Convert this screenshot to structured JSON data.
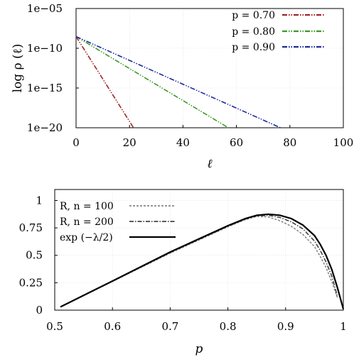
{
  "chart_data": [
    {
      "type": "line",
      "title": "",
      "xlabel": "ℓ",
      "ylabel": "log ρ (ℓ)",
      "y_scale": "log",
      "xlim": [
        0,
        100
      ],
      "ylim": [
        1e-20,
        1e-05
      ],
      "x_ticks": [
        "0",
        "20",
        "40",
        "60",
        "80",
        "100"
      ],
      "y_ticks": [
        "1e−05",
        "1e−10",
        "1e−15",
        "1e−20"
      ],
      "y_tick_values": [
        1e-05,
        1e-10,
        1e-15,
        1e-20
      ],
      "grid": true,
      "legend": "top-right",
      "series": [
        {
          "name": "p = 0.70",
          "color": "#a0262a",
          "dash": "dash-dot-dot",
          "x": [
            0,
            21.5
          ],
          "y": [
            3e-09,
            1e-20
          ]
        },
        {
          "name": "p = 0.80",
          "color": "#3c9a28",
          "dash": "dash-dot-dot",
          "x": [
            0,
            57.0
          ],
          "y": [
            3e-09,
            1e-20
          ]
        },
        {
          "name": "p = 0.90",
          "color": "#1e2a9c",
          "dash": "dash-dot-dot",
          "x": [
            0,
            76.5
          ],
          "y": [
            3e-09,
            1e-20
          ]
        }
      ]
    },
    {
      "type": "line",
      "title": "",
      "xlabel": "p",
      "ylabel": "",
      "xlim": [
        0.5,
        1.0
      ],
      "ylim": [
        0,
        1.1
      ],
      "x_ticks": [
        "0.5",
        "0.6",
        "0.7",
        "0.8",
        "0.9",
        "1"
      ],
      "y_ticks": [
        "0",
        "0.25",
        "0.5",
        "0.75",
        "1"
      ],
      "grid": true,
      "legend": "top-left",
      "series": [
        {
          "name": "R, n = 100",
          "color": "#888888",
          "dash": "dotted",
          "x": [
            0.51,
            0.6,
            0.7,
            0.75,
            0.8,
            0.83,
            0.85,
            0.87,
            0.89,
            0.91,
            0.93,
            0.95,
            0.96,
            0.97,
            0.98,
            0.99
          ],
          "y": [
            0.03,
            0.262,
            0.52,
            0.64,
            0.76,
            0.825,
            0.855,
            0.85,
            0.815,
            0.765,
            0.69,
            0.58,
            0.49,
            0.39,
            0.26,
            0.11
          ]
        },
        {
          "name": "R, n = 200",
          "color": "#444444",
          "dash": "dash-dot",
          "x": [
            0.51,
            0.6,
            0.7,
            0.75,
            0.8,
            0.83,
            0.85,
            0.87,
            0.89,
            0.91,
            0.93,
            0.95,
            0.96,
            0.97,
            0.98,
            0.99
          ],
          "y": [
            0.03,
            0.264,
            0.525,
            0.645,
            0.765,
            0.83,
            0.86,
            0.865,
            0.845,
            0.805,
            0.74,
            0.63,
            0.545,
            0.44,
            0.31,
            0.12
          ]
        },
        {
          "name": "exp (−λ/2)",
          "color": "#000000",
          "dash": "solid",
          "x": [
            0.51,
            0.6,
            0.7,
            0.75,
            0.8,
            0.83,
            0.85,
            0.87,
            0.89,
            0.91,
            0.93,
            0.95,
            0.96,
            0.97,
            0.98,
            0.99,
            1.0
          ],
          "y": [
            0.03,
            0.265,
            0.53,
            0.65,
            0.77,
            0.835,
            0.865,
            0.875,
            0.865,
            0.835,
            0.775,
            0.68,
            0.6,
            0.5,
            0.37,
            0.2,
            0.01
          ]
        }
      ]
    }
  ]
}
